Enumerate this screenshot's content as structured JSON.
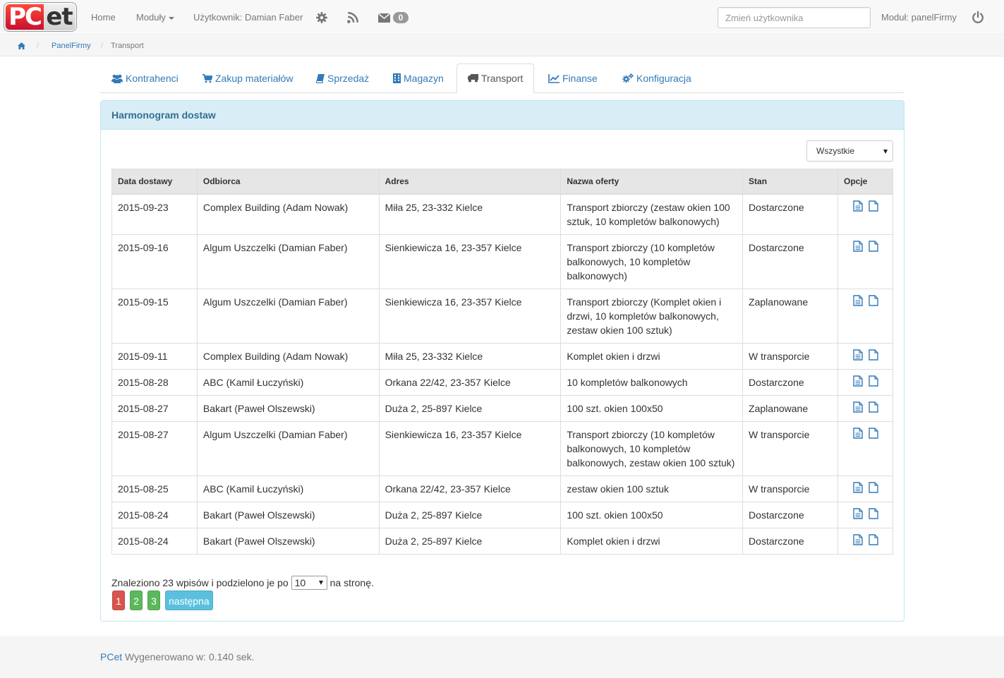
{
  "brand": {
    "logo_left": "PC",
    "logo_right": "et"
  },
  "navbar": {
    "home": "Home",
    "modules": "Moduły",
    "user": "Użytkownik: Damian Faber",
    "messages_count": "0",
    "change_user_placeholder": "Zmień użytkownika",
    "module": "Moduł: panelFirmy",
    "icons": [
      "gear-icon",
      "rss-icon",
      "envelope-icon",
      "power-icon"
    ]
  },
  "breadcrumb": {
    "items": [
      "PanelFirmy",
      "Transport"
    ],
    "separator": "/"
  },
  "tabs": [
    {
      "label": "Kontrahenci",
      "icon": "users-icon"
    },
    {
      "label": "Zakup materiałów",
      "icon": "cart-icon"
    },
    {
      "label": "Sprzedaż",
      "icon": "book-icon"
    },
    {
      "label": "Magazyn",
      "icon": "building-icon"
    },
    {
      "label": "Transport",
      "icon": "truck-icon"
    },
    {
      "label": "Finanse",
      "icon": "chart-icon"
    },
    {
      "label": "Konfiguracja",
      "icon": "cogs-icon"
    }
  ],
  "active_tab": "Transport",
  "panel": {
    "title": "Harmonogram dostaw",
    "filter_value": "Wszystkie"
  },
  "table": {
    "headers": [
      "Data dostawy",
      "Odbiorca",
      "Adres",
      "Nazwa oferty",
      "Stan",
      "Opcje"
    ],
    "rows": [
      {
        "date": "2015-09-23",
        "recipient": "Complex Building (Adam Nowak)",
        "address": "Miła 25, 23-332 Kielce",
        "offer": "Transport zbiorczy (zestaw okien 100 sztuk, 10 kompletów balkonowych)",
        "status": "Dostarczone",
        "status_class": "green"
      },
      {
        "date": "2015-09-16",
        "recipient": "Algum Uszczelki (Damian Faber)",
        "address": "Sienkiewicza 16, 23-357 Kielce",
        "offer": "Transport zbiorczy (10 kompletów balkonowych, 10 kompletów balkonowych)",
        "status": "Dostarczone",
        "status_class": "green"
      },
      {
        "date": "2015-09-15",
        "recipient": "Algum Uszczelki (Damian Faber)",
        "address": "Sienkiewicza 16, 23-357 Kielce",
        "offer": "Transport zbiorczy (Komplet okien i drzwi, 10 kompletów balkonowych, zestaw okien 100 sztuk)",
        "status": "Zaplanowane",
        "status_class": "red"
      },
      {
        "date": "2015-09-11",
        "recipient": "Complex Building (Adam Nowak)",
        "address": "Miła 25, 23-332 Kielce",
        "offer": "Komplet okien i drzwi",
        "status": "W transporcie",
        "status_class": "orange"
      },
      {
        "date": "2015-08-28",
        "recipient": "ABC (Kamil Łuczyński)",
        "address": "Orkana 22/42, 23-357 Kielce",
        "offer": "10 kompletów balkonowych",
        "status": "Dostarczone",
        "status_class": "green"
      },
      {
        "date": "2015-08-27",
        "recipient": "Bakart (Paweł Olszewski)",
        "address": "Duża 2, 25-897 Kielce",
        "offer": "100 szt. okien 100x50",
        "status": "Zaplanowane",
        "status_class": "red"
      },
      {
        "date": "2015-08-27",
        "recipient": "Algum Uszczelki (Damian Faber)",
        "address": "Sienkiewicza 16, 23-357 Kielce",
        "offer": "Transport zbiorczy (10 kompletów balkonowych, 10 kompletów balkonowych, zestaw okien 100 sztuk)",
        "status": "W transporcie",
        "status_class": "orange"
      },
      {
        "date": "2015-08-25",
        "recipient": "ABC (Kamil Łuczyński)",
        "address": "Orkana 22/42, 23-357 Kielce",
        "offer": "zestaw okien 100 sztuk",
        "status": "W transporcie",
        "status_class": "orange"
      },
      {
        "date": "2015-08-24",
        "recipient": "Bakart (Paweł Olszewski)",
        "address": "Duża 2, 25-897 Kielce",
        "offer": "100 szt. okien 100x50",
        "status": "Dostarczone",
        "status_class": "green"
      },
      {
        "date": "2015-08-24",
        "recipient": "Bakart (Paweł Olszewski)",
        "address": "Duża 2, 25-897 Kielce",
        "offer": "Komplet okien i drzwi",
        "status": "Dostarczone",
        "status_class": "green"
      }
    ]
  },
  "pagination": {
    "found_prefix": "Znaleziono 23 wpisów i podzielono je po",
    "per_page": "10",
    "found_suffix": "na stronę.",
    "pages": [
      "1",
      "2",
      "3"
    ],
    "next": "następna"
  },
  "footer": {
    "brand": "PCet",
    "text": "Wygenerowano w: 0.140 sek."
  },
  "colors": {
    "link": "#337ab7",
    "status_green": "#3c9a00",
    "status_red": "#d9000d",
    "status_orange": "#f0843a",
    "panel_heading_bg": "#d9edf7",
    "page_active": "#d9534f",
    "page": "#5cb85c",
    "page_next": "#5bc0de"
  }
}
